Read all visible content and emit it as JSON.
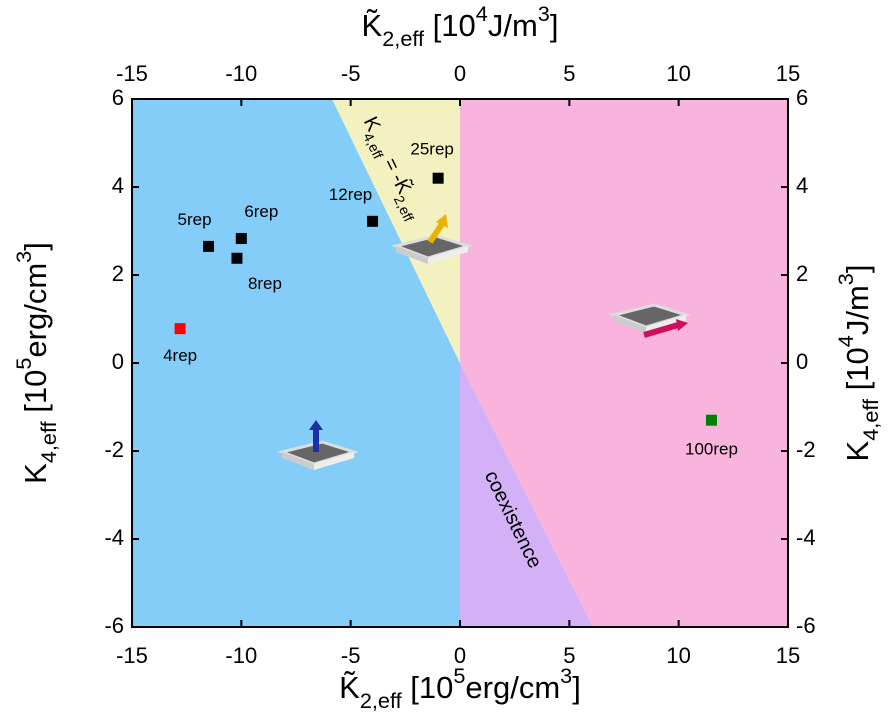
{
  "chart_data": {
    "type": "scatter",
    "x_label": [
      {
        "text": "K̃"
      },
      {
        "text": "2,eff",
        "sub": true
      },
      {
        "text": " [10"
      },
      {
        "text": "5",
        "sup": true
      },
      {
        "text": "erg/cm"
      },
      {
        "text": "3",
        "sup": true
      },
      {
        "text": "]"
      }
    ],
    "x2_label": [
      {
        "text": "K̃"
      },
      {
        "text": "2,eff",
        "sub": true
      },
      {
        "text": " [10"
      },
      {
        "text": "4",
        "sup": true
      },
      {
        "text": "J/m"
      },
      {
        "text": "3",
        "sup": true
      },
      {
        "text": "]"
      }
    ],
    "y_label": [
      {
        "text": "K"
      },
      {
        "text": "4,eff",
        "sub": true
      },
      {
        "text": " [10"
      },
      {
        "text": "5",
        "sup": true
      },
      {
        "text": "erg/cm"
      },
      {
        "text": "3",
        "sup": true
      },
      {
        "text": "]"
      }
    ],
    "y2_label": [
      {
        "text": "K"
      },
      {
        "text": "4,eff",
        "sub": true
      },
      {
        "text": " [10"
      },
      {
        "text": "4",
        "sup": true
      },
      {
        "text": "J/m"
      },
      {
        "text": "3",
        "sup": true
      },
      {
        "text": "]"
      }
    ],
    "xlim": [
      -15,
      15
    ],
    "xticks": [
      -15,
      -10,
      -5,
      0,
      5,
      10,
      15
    ],
    "x2lim": [
      -15,
      15
    ],
    "x2ticks": [
      -15,
      -10,
      -5,
      0,
      5,
      10,
      15
    ],
    "ylim": [
      -6,
      6
    ],
    "yticks": [
      -6,
      -4,
      -2,
      0,
      2,
      4,
      6
    ],
    "y2lim": [
      -6,
      6
    ],
    "y2ticks": [
      -6,
      -4,
      -2,
      0,
      2,
      4,
      6
    ],
    "regions": [
      {
        "color": "#83cdf8",
        "x": [
          -15,
          -5.85,
          0,
          0,
          -15
        ],
        "y": [
          6,
          6,
          0,
          -6,
          -6
        ]
      },
      {
        "color": "#f3f1c0",
        "x": [
          -5.85,
          0,
          0
        ],
        "y": [
          6,
          6,
          0
        ]
      },
      {
        "color": "#f8b4dc",
        "x": [
          0,
          15,
          15,
          6.08,
          0
        ],
        "y": [
          6,
          6,
          -6,
          -6,
          0
        ]
      },
      {
        "color": "#d4b0f7",
        "x": [
          0,
          6.08,
          0
        ],
        "y": [
          0,
          -6,
          -6
        ]
      }
    ],
    "annotations": [
      {
        "parts": [
          {
            "text": "K"
          },
          {
            "text": "4,eff",
            "sub": true
          },
          {
            "text": " = -"
          },
          {
            "text": "K̃"
          },
          {
            "text": "2,eff",
            "sub": true
          }
        ]
      },
      {
        "parts": [
          {
            "text": "coexistence"
          }
        ]
      }
    ],
    "points": [
      {
        "name": "4rep",
        "x": -12.8,
        "y": 0.78,
        "color": "#ff0000"
      },
      {
        "name": "5rep",
        "x": -11.5,
        "y": 2.65,
        "color": "#000000"
      },
      {
        "name": "6rep",
        "x": -10.0,
        "y": 2.83,
        "color": "#000000"
      },
      {
        "name": "8rep",
        "x": -10.2,
        "y": 2.38,
        "color": "#000000"
      },
      {
        "name": "12rep",
        "x": -4.0,
        "y": 3.22,
        "color": "#000000"
      },
      {
        "name": "25rep",
        "x": -1.0,
        "y": 4.2,
        "color": "#000000"
      },
      {
        "name": "100rep",
        "x": 11.5,
        "y": -1.3,
        "color": "#008000"
      }
    ]
  }
}
